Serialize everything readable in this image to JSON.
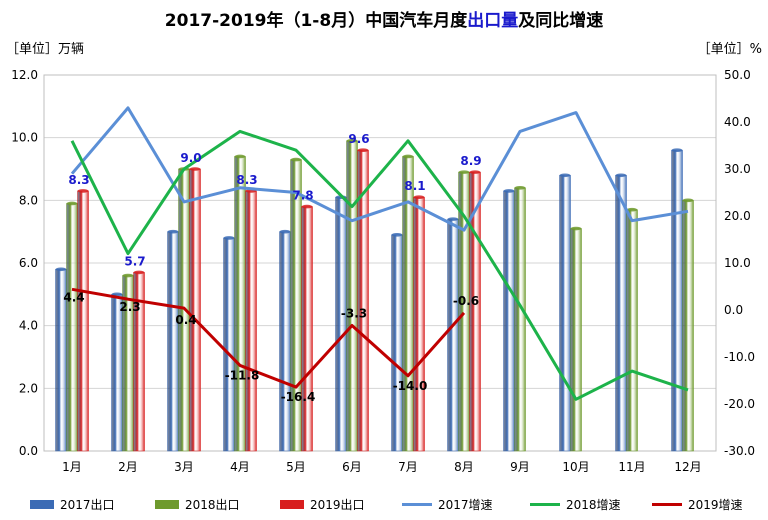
{
  "title": {
    "prefix": "2017-2019年（1-8月）中国汽车月度",
    "highlight": "出口量",
    "suffix": "及同比增速"
  },
  "left_unit": "［单位］万辆",
  "right_unit": "［单位］%",
  "colors": {
    "bar2017": "#3b6bb5",
    "bar2018": "#6e9a2d",
    "bar2019": "#d81e1e",
    "line2017": "#5b8fd6",
    "line2018": "#1db34a",
    "line2019": "#c00000",
    "label2019bar": "#1a1acc"
  },
  "chart_data": {
    "type": "bar",
    "categories": [
      "1月",
      "2月",
      "3月",
      "4月",
      "5月",
      "6月",
      "7月",
      "8月",
      "9月",
      "10月",
      "11月",
      "12月"
    ],
    "left_axis": {
      "min": 0,
      "max": 12,
      "ticks": [
        "0.0",
        "2.0",
        "4.0",
        "6.0",
        "8.0",
        "10.0",
        "12.0"
      ]
    },
    "right_axis": {
      "min": -30,
      "max": 50,
      "ticks": [
        "-30.0",
        "-20.0",
        "-10.0",
        "0.0",
        "10.0",
        "20.0",
        "30.0",
        "40.0",
        "50.0"
      ]
    },
    "bar_series": [
      {
        "name": "2017出口",
        "values": [
          5.8,
          5.0,
          7.0,
          6.8,
          7.0,
          8.1,
          6.9,
          7.4,
          8.3,
          8.8,
          8.8,
          9.6
        ]
      },
      {
        "name": "2018出口",
        "values": [
          7.9,
          5.6,
          9.0,
          9.4,
          9.3,
          9.9,
          9.4,
          8.9,
          8.4,
          7.1,
          7.7,
          8.0
        ]
      },
      {
        "name": "2019出口",
        "values": [
          8.3,
          5.7,
          9.0,
          8.3,
          7.8,
          9.6,
          8.1,
          8.9
        ]
      }
    ],
    "line_series": [
      {
        "name": "2017增速",
        "values": [
          29,
          43,
          23,
          26,
          25,
          19,
          23,
          17,
          38,
          42,
          19,
          21
        ]
      },
      {
        "name": "2018增速",
        "values": [
          36,
          12,
          30,
          38,
          34,
          22,
          36,
          20,
          1,
          -19,
          -13,
          -17
        ]
      },
      {
        "name": "2019增速",
        "values": [
          4.4,
          2.3,
          0.4,
          -11.8,
          -16.4,
          -3.3,
          -14.0,
          -0.6
        ]
      }
    ],
    "bar_labels_2019": [
      "8.3",
      "5.7",
      "9.0",
      "8.3",
      "7.8",
      "9.6",
      "8.1",
      "8.9"
    ],
    "line_labels_2019": [
      "4.4",
      "2.3",
      "0.4",
      "-11.8",
      "-16.4",
      "-3.3",
      "-14.0",
      "-0.6"
    ]
  },
  "legend": [
    "2017出口",
    "2018出口",
    "2019出口",
    "2017增速",
    "2018增速",
    "2019增速"
  ]
}
